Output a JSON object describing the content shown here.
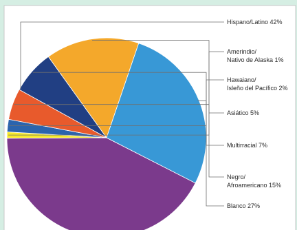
{
  "chart_data": {
    "type": "pie",
    "title": "",
    "legend": "none",
    "labels_position": "right",
    "start_angle_deg": 117,
    "direction": "clockwise",
    "slices": [
      {
        "key": "hispano",
        "lines": [
          "Hispano/Latino 42%"
        ],
        "value": 42,
        "color": "#7b3a8c"
      },
      {
        "key": "amerindio",
        "lines": [
          "Amerindio/",
          "Nativo de Alaska 1%"
        ],
        "value": 1,
        "color": "#f7ea2a"
      },
      {
        "key": "hawaiano",
        "lines": [
          "Hawaiano/",
          "Isleño del Pacífico 2%"
        ],
        "value": 2,
        "color": "#2b64ad"
      },
      {
        "key": "asiatico",
        "lines": [
          "Asiático 5%"
        ],
        "value": 5,
        "color": "#e85a2c"
      },
      {
        "key": "multirracial",
        "lines": [
          "Multirracial 7%"
        ],
        "value": 7,
        "color": "#213f83"
      },
      {
        "key": "negro",
        "lines": [
          "Negro/",
          "Afroamericano 15%"
        ],
        "value": 15,
        "color": "#f4a82b"
      },
      {
        "key": "blanco",
        "lines": [
          "Blanco 27%"
        ],
        "value": 27,
        "color": "#3898d6"
      }
    ]
  }
}
